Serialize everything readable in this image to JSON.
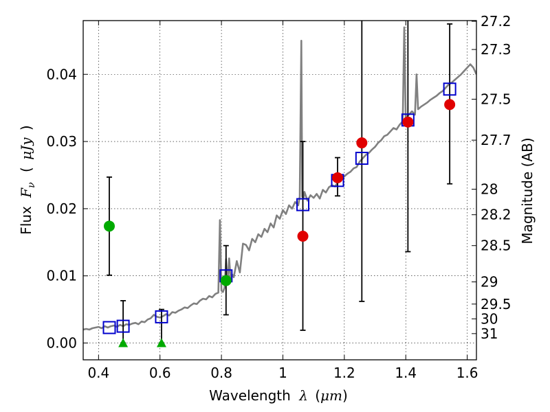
{
  "chart_data": {
    "type": "scatter",
    "xlabel_prefix": "Wavelength",
    "xlabel_symbol": "λ",
    "xlabel_unit_open": "(",
    "xlabel_unit": "μm",
    "xlabel_unit_close": ")",
    "ylabel_prefix": "Flux",
    "ylabel_symbol": "F",
    "ylabel_subscript": "ν",
    "ylabel_unit_open": "(",
    "ylabel_unit": "μJy",
    "ylabel_unit_close": ")",
    "y2label": "Magnitude (AB)",
    "xlim": [
      0.35,
      1.63
    ],
    "ylim": [
      -0.0025,
      0.048
    ],
    "grid": true,
    "x_ticks": [
      0.4,
      0.6,
      0.8,
      1.0,
      1.2,
      1.4,
      1.6
    ],
    "x_tick_labels": [
      "0.4",
      "0.6",
      "0.8",
      "1",
      "1.2",
      "1.4",
      "1.6"
    ],
    "y_ticks": [
      0.0,
      0.01,
      0.02,
      0.03,
      0.04
    ],
    "y_tick_labels": [
      "0.00",
      "0.01",
      "0.02",
      "0.03",
      "0.04"
    ],
    "y2_ticks": [
      {
        "label": "27.2",
        "flux": 0.0479
      },
      {
        "label": "27.3",
        "flux": 0.0437
      },
      {
        "label": "27.5",
        "flux": 0.0363
      },
      {
        "label": "27.7",
        "flux": 0.0302
      },
      {
        "label": "28",
        "flux": 0.0229
      },
      {
        "label": "28.2",
        "flux": 0.0191
      },
      {
        "label": "28.5",
        "flux": 0.0145
      },
      {
        "label": "29",
        "flux": 0.0091
      },
      {
        "label": "29.5",
        "flux": 0.0058
      },
      {
        "label": "30",
        "flux": 0.0036
      },
      {
        "label": "31",
        "flux": 0.0014
      }
    ],
    "series": [
      {
        "name": "model_spectrum",
        "style": "line",
        "color": "#808080",
        "x": [
          0.35,
          0.36,
          0.37,
          0.38,
          0.39,
          0.4,
          0.41,
          0.42,
          0.43,
          0.44,
          0.45,
          0.46,
          0.47,
          0.48,
          0.49,
          0.5,
          0.51,
          0.52,
          0.53,
          0.54,
          0.55,
          0.56,
          0.57,
          0.58,
          0.59,
          0.6,
          0.61,
          0.62,
          0.63,
          0.64,
          0.65,
          0.66,
          0.67,
          0.68,
          0.69,
          0.7,
          0.71,
          0.72,
          0.73,
          0.74,
          0.75,
          0.76,
          0.77,
          0.78,
          0.79,
          0.795,
          0.8,
          0.805,
          0.81,
          0.815,
          0.82,
          0.825,
          0.83,
          0.835,
          0.84,
          0.85,
          0.86,
          0.87,
          0.88,
          0.89,
          0.9,
          0.91,
          0.92,
          0.93,
          0.94,
          0.95,
          0.96,
          0.97,
          0.98,
          0.99,
          1.0,
          1.01,
          1.02,
          1.03,
          1.04,
          1.05,
          1.055,
          1.06,
          1.063,
          1.067,
          1.07,
          1.08,
          1.09,
          1.1,
          1.11,
          1.12,
          1.13,
          1.14,
          1.15,
          1.16,
          1.17,
          1.18,
          1.19,
          1.2,
          1.21,
          1.22,
          1.23,
          1.24,
          1.25,
          1.26,
          1.27,
          1.28,
          1.29,
          1.3,
          1.31,
          1.32,
          1.33,
          1.34,
          1.35,
          1.36,
          1.37,
          1.38,
          1.39,
          1.395,
          1.4,
          1.405,
          1.41,
          1.42,
          1.43,
          1.435,
          1.44,
          1.45,
          1.46,
          1.47,
          1.48,
          1.49,
          1.5,
          1.51,
          1.52,
          1.53,
          1.54,
          1.55,
          1.56,
          1.57,
          1.58,
          1.59,
          1.6,
          1.61,
          1.62,
          1.63
        ],
        "y": [
          0.002,
          0.0021,
          0.002,
          0.0022,
          0.0023,
          0.0024,
          0.0022,
          0.0025,
          0.0023,
          0.0025,
          0.0026,
          0.0024,
          0.0027,
          0.0025,
          0.0028,
          0.0027,
          0.0029,
          0.003,
          0.0028,
          0.0032,
          0.0031,
          0.0035,
          0.0037,
          0.0042,
          0.0039,
          0.0038,
          0.004,
          0.0043,
          0.0041,
          0.0046,
          0.0045,
          0.0048,
          0.005,
          0.0053,
          0.0052,
          0.0056,
          0.0059,
          0.0058,
          0.0063,
          0.0066,
          0.0065,
          0.007,
          0.0068,
          0.0073,
          0.0075,
          0.0183,
          0.0078,
          0.0076,
          0.0082,
          0.0125,
          0.0088,
          0.0126,
          0.0095,
          0.0102,
          0.0098,
          0.0122,
          0.0105,
          0.0148,
          0.0146,
          0.0138,
          0.0155,
          0.015,
          0.0162,
          0.0158,
          0.017,
          0.0165,
          0.0178,
          0.0172,
          0.019,
          0.0185,
          0.0198,
          0.0192,
          0.0205,
          0.02,
          0.021,
          0.0205,
          0.0218,
          0.045,
          0.0218,
          0.0215,
          0.0225,
          0.0212,
          0.022,
          0.0216,
          0.0222,
          0.0215,
          0.0228,
          0.0224,
          0.0232,
          0.0235,
          0.0233,
          0.024,
          0.0245,
          0.0248,
          0.0252,
          0.0255,
          0.026,
          0.0262,
          0.027,
          0.0275,
          0.028,
          0.0283,
          0.0288,
          0.0292,
          0.0298,
          0.0302,
          0.0308,
          0.031,
          0.0315,
          0.032,
          0.0318,
          0.0325,
          0.033,
          0.047,
          0.0332,
          0.0338,
          0.034,
          0.0345,
          0.034,
          0.04,
          0.0348,
          0.0352,
          0.0355,
          0.0358,
          0.0362,
          0.0365,
          0.0368,
          0.0372,
          0.0375,
          0.038,
          0.0385,
          0.0388,
          0.0392,
          0.0396,
          0.04,
          0.0405,
          0.041,
          0.0415,
          0.041,
          0.04
        ]
      },
      {
        "name": "green_detections",
        "style": "circle",
        "color": "#00aa00",
        "x": [
          0.435,
          0.815
        ],
        "y": [
          0.0174,
          0.0093
        ],
        "err_low": [
          0.0073,
          0.0051
        ],
        "err_high": [
          0.0073,
          0.0052
        ]
      },
      {
        "name": "green_upper_limits",
        "style": "triangle",
        "color": "#00aa00",
        "x": [
          0.48,
          0.605
        ],
        "y": [
          0.0,
          0.0
        ],
        "err_high": [
          0.0063,
          0.005
        ]
      },
      {
        "name": "red_detections",
        "style": "circle",
        "color": "#e00000",
        "x": [
          1.065,
          1.178,
          1.257,
          1.407,
          1.543
        ],
        "y": [
          0.0159,
          0.0246,
          0.0298,
          0.0329,
          0.0355
        ],
        "err_low": [
          0.014,
          0.0027,
          0.0236,
          0.0193,
          0.0118
        ],
        "err_high": [
          0.0141,
          0.003,
          0.02,
          0.02,
          0.012
        ]
      },
      {
        "name": "model_photometry",
        "style": "square",
        "color": "#0000cc",
        "x": [
          0.435,
          0.48,
          0.605,
          0.815,
          1.065,
          1.178,
          1.257,
          1.407,
          1.543
        ],
        "y": [
          0.0023,
          0.0025,
          0.0039,
          0.01,
          0.0206,
          0.0242,
          0.0275,
          0.0332,
          0.0378
        ]
      }
    ]
  }
}
